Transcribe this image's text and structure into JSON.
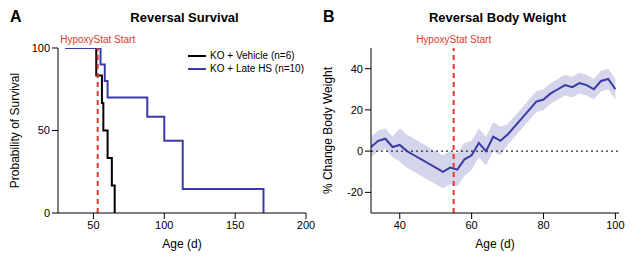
{
  "chart_data": [
    {
      "panel": "A",
      "type": "line",
      "line_style": "step",
      "title": "Reversal Survival",
      "x_label": "Age (d)",
      "y_label": "Probability of Survival",
      "xlim": [
        25,
        200
      ],
      "xticks": [
        50,
        100,
        150,
        200
      ],
      "ylim": [
        0,
        100
      ],
      "yticks": [
        0,
        50,
        100
      ],
      "legend": "upper right",
      "annotation": {
        "text": "HypoxyStat Start",
        "x": 53,
        "color": "#e0392b"
      },
      "series": [
        {
          "name": "KO + Vehicle (n=6)",
          "color": "#000000",
          "x": [
            30,
            52,
            56,
            57,
            60,
            63,
            65
          ],
          "values": [
            100,
            83.3,
            66.7,
            50,
            33.3,
            16.7,
            0
          ]
        },
        {
          "name": "KO + Late HS (n=10)",
          "color": "#3b3ba6",
          "x": [
            30,
            55,
            58,
            60,
            88,
            100,
            113,
            170
          ],
          "values": [
            100,
            90,
            80,
            70,
            58.3,
            43.8,
            14.6,
            0
          ]
        }
      ]
    },
    {
      "panel": "B",
      "type": "line",
      "title": "Reversal Body Weight",
      "x_label": "Age (d)",
      "y_label": "% Change Body Weight",
      "xlim": [
        32,
        101
      ],
      "xticks": [
        40,
        60,
        80,
        100
      ],
      "ylim": [
        -30,
        50
      ],
      "yticks": [
        -20,
        0,
        20,
        40
      ],
      "hline": 0,
      "annotation": {
        "text": "HypoxyStat Start",
        "x": 55,
        "color": "#e0392b"
      },
      "series": [
        {
          "color": "#3b3ba6",
          "x": [
            32,
            34,
            36,
            38,
            40,
            42,
            44,
            46,
            48,
            50,
            52,
            54,
            56,
            58,
            60,
            62,
            64,
            66,
            68,
            70,
            72,
            74,
            76,
            78,
            80,
            82,
            84,
            86,
            88,
            90,
            92,
            94,
            96,
            98,
            100
          ],
          "values": [
            2,
            5,
            6,
            2,
            3,
            0,
            -2,
            -4,
            -6,
            -8,
            -10,
            -8,
            -9,
            -4,
            -2,
            4,
            0,
            7,
            5,
            8,
            12,
            16,
            20,
            24,
            25,
            28,
            30,
            32,
            31,
            33,
            32,
            30,
            34,
            35,
            30
          ],
          "band_lower": [
            -3,
            0,
            1,
            -3,
            -5,
            -8,
            -10,
            -12,
            -14,
            -16,
            -18,
            -16,
            -17,
            -12,
            -9,
            -3,
            -7,
            0,
            -2,
            3,
            7,
            11,
            15,
            19,
            20,
            23,
            25,
            27,
            26,
            28,
            27,
            25,
            29,
            30,
            25
          ],
          "band_upper": [
            7,
            10,
            11,
            7,
            11,
            8,
            6,
            4,
            2,
            0,
            -2,
            0,
            -1,
            4,
            5,
            11,
            7,
            14,
            12,
            13,
            17,
            21,
            25,
            29,
            30,
            33,
            35,
            37,
            36,
            38,
            37,
            35,
            39,
            40,
            35
          ]
        }
      ]
    }
  ]
}
